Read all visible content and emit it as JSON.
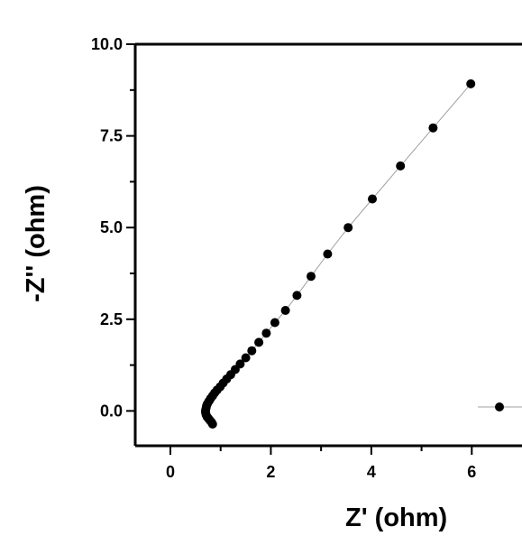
{
  "chart_data": {
    "type": "scatter",
    "xlabel": "Z' (ohm)",
    "ylabel": "-Z'' (ohm)",
    "xlim": [
      -0.7,
      7.0
    ],
    "ylim": [
      -0.95,
      10.0
    ],
    "x_ticks": [
      0,
      2,
      4,
      6
    ],
    "x_tick_labels": [
      "0",
      "2",
      "4",
      "6"
    ],
    "y_ticks": [
      0.0,
      2.5,
      5.0,
      7.5,
      10.0
    ],
    "y_tick_labels": [
      "0.0",
      "2.5",
      "5.0",
      "7.5",
      "10.0"
    ],
    "grid": false,
    "legend": {
      "position": "right",
      "marker_color": "#000000",
      "line_color": "#a0a0a0"
    },
    "series": [
      {
        "marker": "circle",
        "marker_color": "#000000",
        "line_color": "#a0a0a0",
        "points": [
          [
            0.84,
            -0.36
          ],
          [
            0.82,
            -0.31
          ],
          [
            0.79,
            -0.26
          ],
          [
            0.76,
            -0.21
          ],
          [
            0.73,
            -0.16
          ],
          [
            0.71,
            -0.1
          ],
          [
            0.7,
            -0.04
          ],
          [
            0.7,
            0.02
          ],
          [
            0.71,
            0.08
          ],
          [
            0.72,
            0.14
          ],
          [
            0.74,
            0.2
          ],
          [
            0.77,
            0.27
          ],
          [
            0.8,
            0.34
          ],
          [
            0.84,
            0.41
          ],
          [
            0.88,
            0.49
          ],
          [
            0.93,
            0.57
          ],
          [
            0.99,
            0.66
          ],
          [
            1.05,
            0.76
          ],
          [
            1.12,
            0.87
          ],
          [
            1.2,
            0.99
          ],
          [
            1.29,
            1.13
          ],
          [
            1.39,
            1.28
          ],
          [
            1.5,
            1.45
          ],
          [
            1.62,
            1.64
          ],
          [
            1.76,
            1.87
          ],
          [
            1.91,
            2.12
          ],
          [
            2.08,
            2.41
          ],
          [
            2.29,
            2.74
          ],
          [
            2.52,
            3.15
          ],
          [
            2.8,
            3.67
          ],
          [
            3.13,
            4.28
          ],
          [
            3.54,
            5.0
          ],
          [
            4.02,
            5.78
          ],
          [
            4.58,
            6.68
          ],
          [
            5.23,
            7.72
          ],
          [
            5.98,
            8.92
          ]
        ]
      }
    ]
  }
}
